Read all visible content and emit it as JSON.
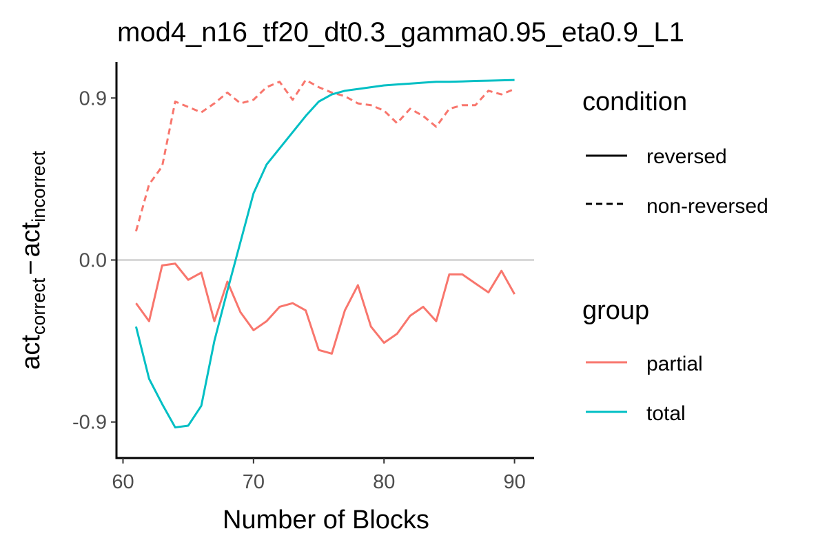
{
  "chart_data": {
    "type": "line",
    "title": "mod4_n16_tf20_dt0.3_gamma0.95_eta0.9_L1",
    "xlabel": "Number of Blocks",
    "ylabel": {
      "base1": "act",
      "sub1": "correct",
      "minus": "−",
      "base2": "act",
      "sub2": "incorrect"
    },
    "xlim": [
      59.5,
      91.5
    ],
    "ylim": [
      -1.1,
      1.1
    ],
    "xticks": [
      60,
      70,
      80,
      90
    ],
    "yticks": [
      -0.9,
      0.0,
      0.9
    ],
    "ytick_labels": [
      "-0.9",
      "0.0",
      "0.9"
    ],
    "hline": 0,
    "grid": false,
    "legend_position": "right",
    "legend": {
      "condition": {
        "title": "condition",
        "items": [
          {
            "label": "reversed",
            "linetype": "solid"
          },
          {
            "label": "non-reversed",
            "linetype": "dashed"
          }
        ]
      },
      "group": {
        "title": "group",
        "items": [
          {
            "label": "partial",
            "color": "#F8766D"
          },
          {
            "label": "total",
            "color": "#00BFC4"
          }
        ]
      }
    },
    "series": [
      {
        "group": "partial",
        "condition": "non-reversed",
        "color": "#F8766D",
        "linetype": "dashed",
        "x": [
          61,
          62,
          63,
          64,
          65,
          66,
          67,
          68,
          69,
          70,
          71,
          72,
          73,
          74,
          75,
          76,
          77,
          78,
          79,
          80,
          81,
          82,
          83,
          84,
          85,
          86,
          87,
          88,
          89,
          90
        ],
        "y": [
          0.16,
          0.42,
          0.52,
          0.88,
          0.85,
          0.82,
          0.87,
          0.93,
          0.87,
          0.89,
          0.96,
          0.99,
          0.89,
          1.0,
          0.96,
          0.93,
          0.91,
          0.87,
          0.86,
          0.83,
          0.76,
          0.84,
          0.8,
          0.74,
          0.84,
          0.86,
          0.86,
          0.94,
          0.92,
          0.95
        ]
      },
      {
        "group": "partial",
        "condition": "reversed",
        "color": "#F8766D",
        "linetype": "solid",
        "x": [
          61,
          62,
          63,
          64,
          65,
          66,
          67,
          68,
          69,
          70,
          71,
          72,
          73,
          74,
          75,
          76,
          77,
          78,
          79,
          80,
          81,
          82,
          83,
          84,
          85,
          86,
          87,
          88,
          89,
          90
        ],
        "y": [
          -0.24,
          -0.34,
          -0.03,
          -0.02,
          -0.11,
          -0.07,
          -0.34,
          -0.12,
          -0.29,
          -0.39,
          -0.34,
          -0.26,
          -0.24,
          -0.28,
          -0.5,
          -0.52,
          -0.28,
          -0.14,
          -0.37,
          -0.46,
          -0.41,
          -0.31,
          -0.26,
          -0.34,
          -0.08,
          -0.08,
          -0.13,
          -0.18,
          -0.06,
          -0.19
        ]
      },
      {
        "group": "total",
        "condition": "reversed",
        "color": "#00BFC4",
        "linetype": "solid",
        "x": [
          61,
          62,
          63,
          64,
          65,
          66,
          67,
          68,
          69,
          70,
          71,
          72,
          73,
          74,
          75,
          76,
          77,
          78,
          79,
          80,
          81,
          82,
          83,
          84,
          85,
          86,
          87,
          88,
          89,
          90
        ],
        "y": [
          -0.37,
          -0.66,
          -0.8,
          -0.93,
          -0.92,
          -0.81,
          -0.45,
          -0.17,
          0.1,
          0.37,
          0.53,
          0.62,
          0.71,
          0.8,
          0.88,
          0.92,
          0.94,
          0.95,
          0.96,
          0.97,
          0.975,
          0.98,
          0.985,
          0.99,
          0.99,
          0.992,
          0.995,
          0.996,
          0.998,
          1.0
        ]
      }
    ]
  }
}
